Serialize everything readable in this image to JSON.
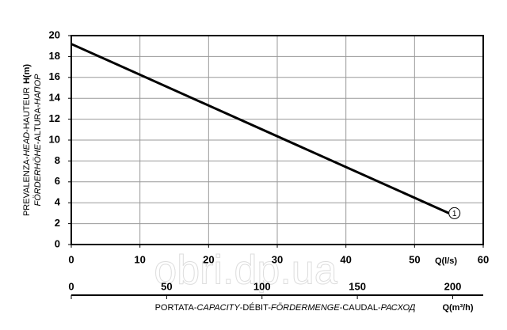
{
  "chart_data": {
    "type": "line",
    "x": [
      0,
      55
    ],
    "series": [
      {
        "name": "1",
        "color": "#000000",
        "values": [
          19.2,
          3.0
        ]
      }
    ],
    "xlim": [
      0,
      60
    ],
    "xticks": [
      0,
      10,
      20,
      30,
      40,
      50,
      60
    ],
    "ylim": [
      0,
      20
    ],
    "yticks": [
      0,
      2,
      4,
      6,
      8,
      10,
      12,
      14,
      16,
      18,
      20
    ],
    "x2lim": [
      0,
      216
    ],
    "x2ticks": [
      0,
      50,
      100,
      150,
      200
    ],
    "xunit": "Q(l/s)",
    "x2unit": "Q(m³/h)",
    "ylabel_line1": [
      "PREVALENZA-",
      "HEAD",
      "-HAUTEUR"
    ],
    "yunit": "H(m)",
    "ylabel_line2": [
      "FÖRDERHÖHE",
      "-ALTURA-",
      "НАПОР"
    ],
    "x2label": [
      "PORTATA-",
      "CAPACITY",
      "-DÉBIT-",
      "FÖRDERMENGE",
      "-CAUDAL-",
      "РАСХОД"
    ],
    "watermark": "obri.dp.ua",
    "grid": true
  }
}
